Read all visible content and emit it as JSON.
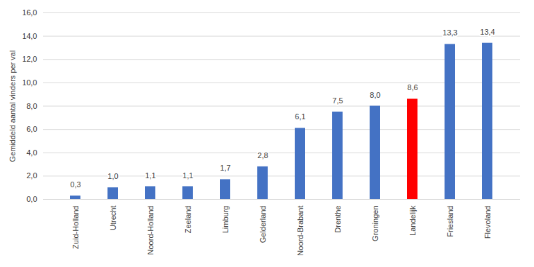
{
  "chart_data": {
    "type": "bar",
    "y_label": "Gemiddeld aantal vinders per val",
    "categories": [
      "Zuid-Holland",
      "Utrecht",
      "Noord-Holland",
      "Zeeland",
      "Limburg",
      "Gelderland",
      "Noord-Brabant",
      "Drenthe",
      "Groningen",
      "Landelijk",
      "Friesland",
      "Flevoland"
    ],
    "values": [
      0.3,
      1.0,
      1.1,
      1.1,
      1.7,
      2.8,
      6.1,
      7.5,
      8.0,
      8.6,
      13.3,
      13.4
    ],
    "value_labels": [
      "0,3",
      "1,0",
      "1,1",
      "1,1",
      "1,7",
      "2,8",
      "6,1",
      "7,5",
      "8,0",
      "8,6",
      "13,3",
      "13,4"
    ],
    "colors": [
      "#4472c4",
      "#4472c4",
      "#4472c4",
      "#4472c4",
      "#4472c4",
      "#4472c4",
      "#4472c4",
      "#4472c4",
      "#4472c4",
      "#ff0000",
      "#4472c4",
      "#4472c4"
    ],
    "ylim": [
      0,
      16
    ],
    "yticks": [
      {
        "value": 0,
        "label": "0,0"
      },
      {
        "value": 2,
        "label": "2,0"
      },
      {
        "value": 4,
        "label": "4,0"
      },
      {
        "value": 6,
        "label": "6,0"
      },
      {
        "value": 8,
        "label": "8,0"
      },
      {
        "value": 10,
        "label": "10,0"
      },
      {
        "value": 12,
        "label": "12,0"
      },
      {
        "value": 14,
        "label": "14,0"
      },
      {
        "value": 16,
        "label": "16,0"
      }
    ],
    "grid": true,
    "data_labels": true
  }
}
